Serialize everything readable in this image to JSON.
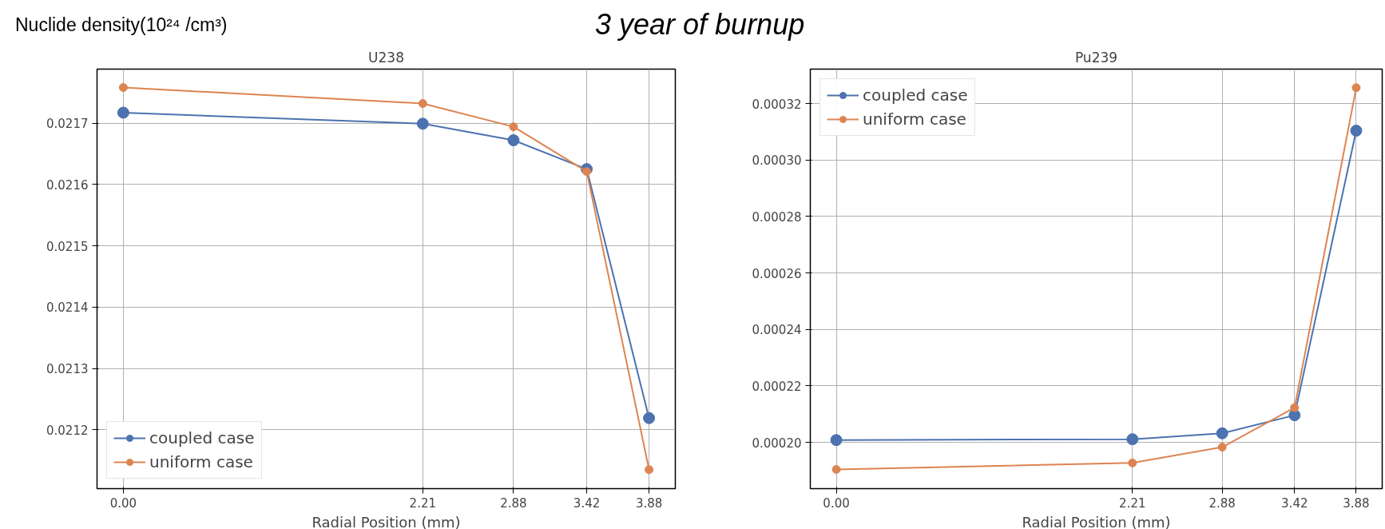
{
  "chart_data": [
    {
      "type": "line",
      "title": "U238",
      "ylabel": "Nuclide density(10²⁴ /cm³)",
      "xlabel": "Radial Position (mm)",
      "annotations": [
        "3 year of burnup"
      ],
      "x": [
        0,
        2.21,
        2.88,
        3.42,
        3.88
      ],
      "series": [
        {
          "name": "coupled case",
          "color": "#4c72b0",
          "values": [
            0.021717,
            0.021699,
            0.021672,
            0.021625,
            0.021219
          ]
        },
        {
          "name": "uniform case",
          "color": "#dd8452",
          "values": [
            0.021758,
            0.021732,
            0.021694,
            0.021621,
            0.021135
          ]
        }
      ],
      "xlim": [
        -0.194,
        4.074
      ],
      "ylim": [
        0.021104,
        0.021788
      ],
      "xticks": [
        {
          "value": 0,
          "label": "0.00"
        },
        2.21,
        2.88,
        3.42,
        3.88
      ],
      "yticks": [
        0.0212,
        0.0213,
        0.0214,
        0.0215,
        0.0216,
        0.0217
      ],
      "grid": true,
      "legend": "bottom left",
      "marker": "circle",
      "line_style": "solid"
    },
    {
      "type": "line",
      "title": "Pu239",
      "xlabel": "Radial Position (mm)",
      "x": [
        0,
        2.21,
        2.88,
        3.42,
        3.88
      ],
      "series": [
        {
          "name": "coupled case",
          "color": "#4c72b0",
          "values": [
            0.0002008,
            0.0002011,
            0.0002032,
            0.0002096,
            0.0003104
          ]
        },
        {
          "name": "uniform case",
          "color": "#dd8452",
          "values": [
            0.0001904,
            0.0001927,
            0.0001983,
            0.0002123,
            0.0003256
          ]
        }
      ],
      "xlim": [
        -0.194,
        4.074
      ],
      "ylim": [
        0.0001836,
        0.0003322
      ],
      "xticks": [
        {
          "value": 0,
          "label": "0.00"
        },
        2.21,
        2.88,
        3.42,
        3.88
      ],
      "yticks": [
        {
          "value": 0.0002,
          "label": "0.00020"
        },
        {
          "value": 0.00022,
          "label": "0.00022"
        },
        {
          "value": 0.00024,
          "label": "0.00024"
        },
        {
          "value": 0.00026,
          "label": "0.00026"
        },
        {
          "value": 0.00028,
          "label": "0.00028"
        },
        {
          "value": 0.0003,
          "label": "0.00030"
        },
        {
          "value": 0.00032,
          "label": "0.00032"
        }
      ],
      "grid": true,
      "legend": "top left",
      "marker": "circle",
      "line_style": "solid"
    }
  ]
}
